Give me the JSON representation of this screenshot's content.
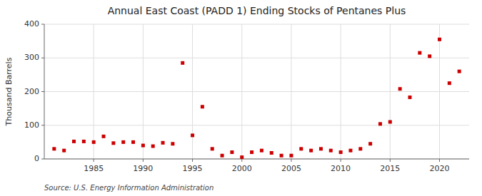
{
  "chart_data": {
    "type": "scatter",
    "title": "Annual East Coast (PADD 1) Ending Stocks of Pentanes Plus",
    "ylabel": "Thousand Barrels",
    "source": "Source: U.S. Energy Information Administration",
    "x": [
      1981,
      1982,
      1983,
      1984,
      1985,
      1986,
      1987,
      1988,
      1989,
      1990,
      1991,
      1992,
      1993,
      1994,
      1995,
      1996,
      1997,
      1998,
      1999,
      2000,
      2001,
      2002,
      2003,
      2004,
      2005,
      2006,
      2007,
      2008,
      2009,
      2010,
      2011,
      2012,
      2013,
      2014,
      2015,
      2016,
      2017,
      2018,
      2019,
      2020,
      2021,
      2022
    ],
    "values": [
      30,
      25,
      52,
      52,
      50,
      67,
      47,
      50,
      50,
      40,
      38,
      48,
      45,
      285,
      70,
      155,
      30,
      10,
      20,
      5,
      20,
      25,
      18,
      10,
      10,
      30,
      25,
      30,
      25,
      20,
      25,
      30,
      45,
      104,
      110,
      208,
      183,
      315,
      305,
      355,
      225,
      260
    ],
    "color": "#cc0000",
    "marker": "square",
    "xlim": [
      1980,
      2023
    ],
    "ylim": [
      0,
      400
    ],
    "xticks": [
      1985,
      1990,
      1995,
      2000,
      2005,
      2010,
      2015,
      2020
    ],
    "yticks": [
      0,
      100,
      200,
      300,
      400
    ],
    "grid": true
  }
}
